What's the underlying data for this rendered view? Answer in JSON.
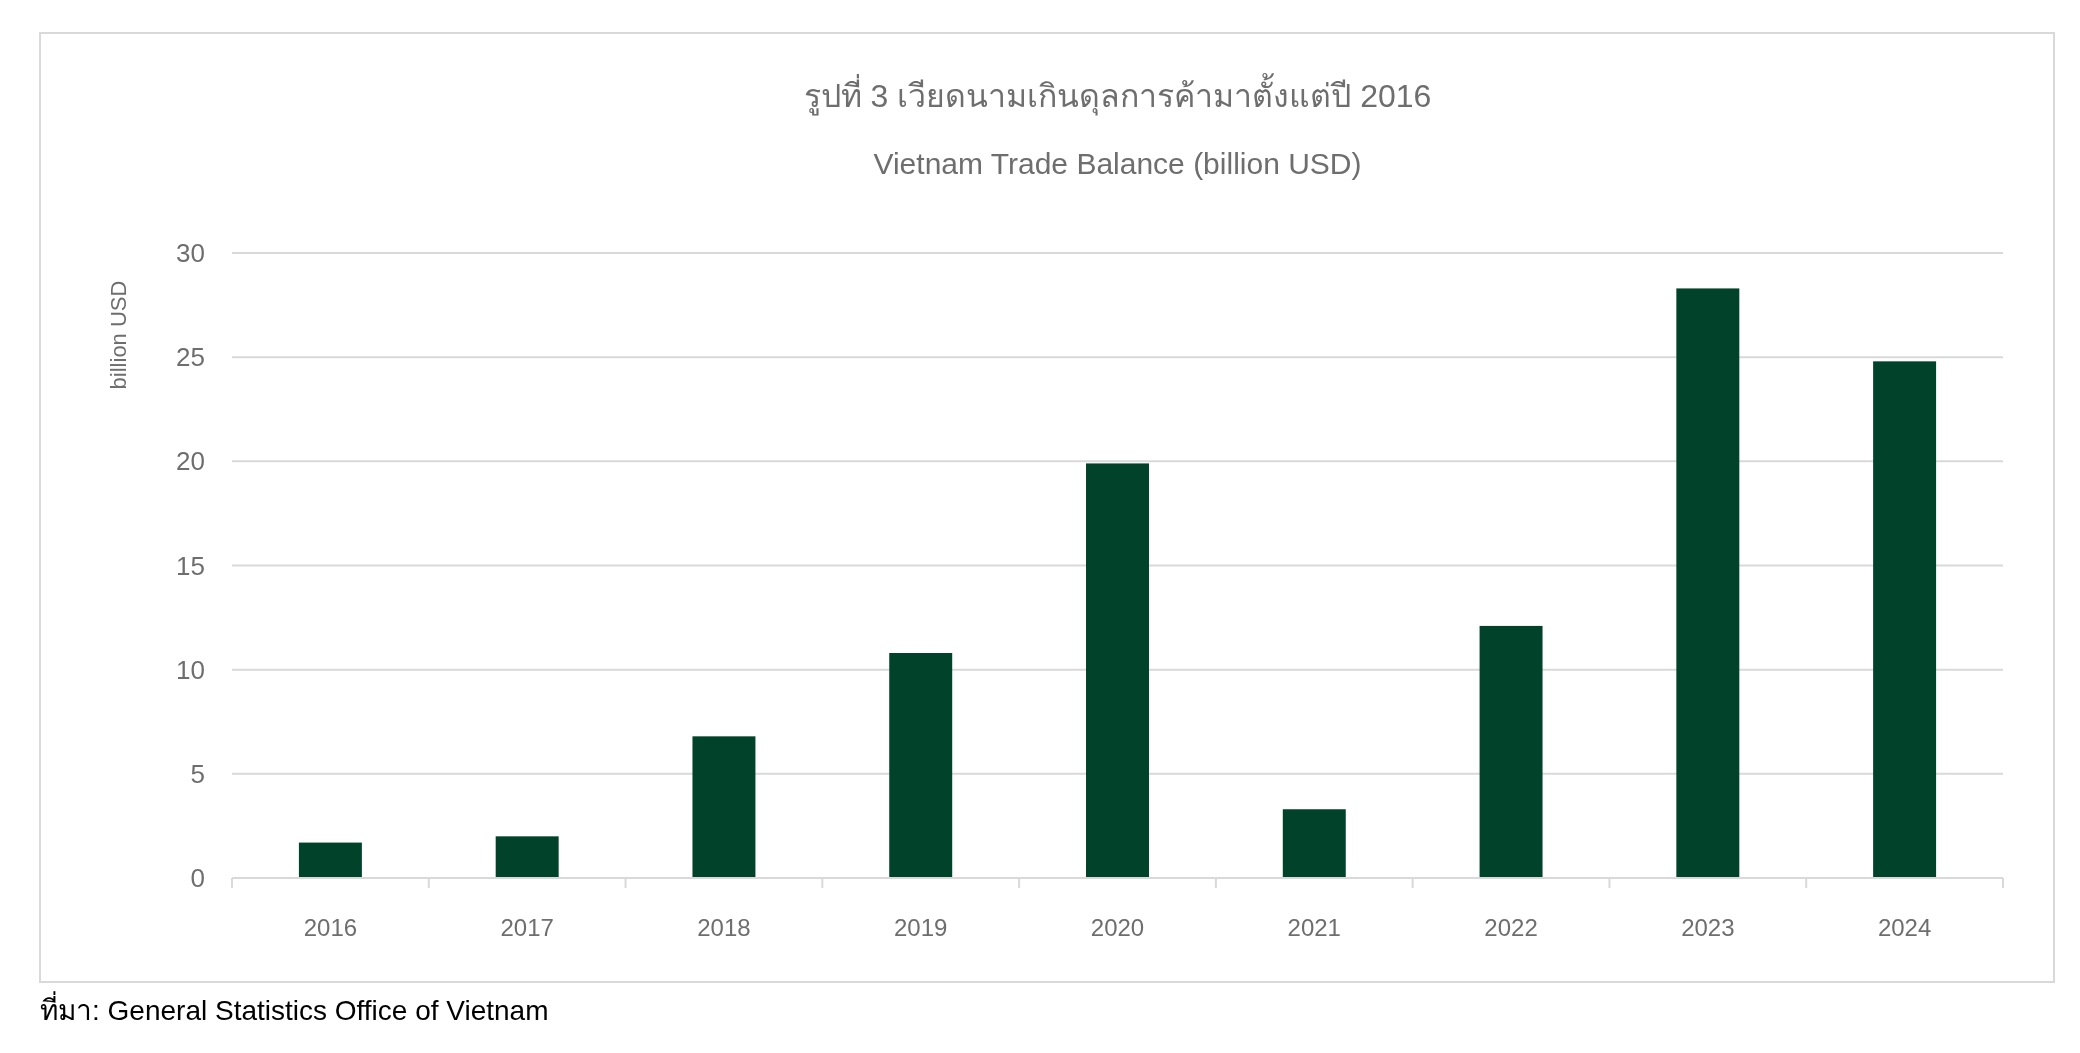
{
  "chart_data": {
    "type": "bar",
    "title": "รูปที่ 3 เวียดนามเกินดุลการค้ามาตั้งแต่ปี 2016",
    "subtitle": "Vietnam Trade Balance (billion USD)",
    "ylabel": "billion USD",
    "categories": [
      "2016",
      "2017",
      "2018",
      "2019",
      "2020",
      "2021",
      "2022",
      "2023",
      "2024"
    ],
    "values": [
      1.7,
      2.0,
      6.8,
      10.8,
      19.9,
      3.3,
      12.1,
      28.3,
      24.8
    ],
    "color": "#00432a",
    "ylim": [
      0,
      30
    ],
    "yticks": [
      0,
      5,
      10,
      15,
      20,
      25,
      30
    ],
    "grid": "y",
    "annotations": [
      "ที่มา: General Statistics Office of Vietnam"
    ]
  }
}
